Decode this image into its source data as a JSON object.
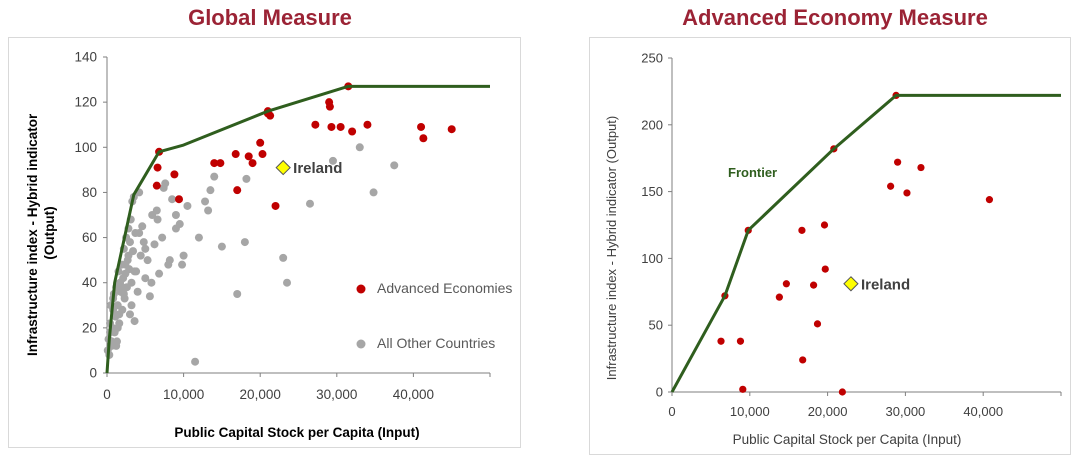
{
  "colors": {
    "title": "#9b2335",
    "frontier": "#2f5e1e",
    "advanced": "#c00000",
    "other": "#a6a6a6",
    "ireland_fill": "#ffff00",
    "axis": "#7f7f7f"
  },
  "chart_data": [
    {
      "type": "scatter",
      "title": "Global Measure",
      "xlabel": "Public Capital Stock per Capita (Input)",
      "ylabel": "Infrastructure index - Hybrid indicator (Output)",
      "xlim": [
        0,
        50000
      ],
      "ylim": [
        0,
        140
      ],
      "xticks": [
        0,
        10000,
        20000,
        30000,
        40000
      ],
      "xtick_labels": [
        "0",
        "10,000",
        "20,000",
        "30,000",
        "40,000"
      ],
      "yticks": [
        0,
        20,
        40,
        60,
        80,
        100,
        120,
        140
      ],
      "ytick_labels": [
        "0",
        "20",
        "40",
        "60",
        "80",
        "100",
        "120",
        "140"
      ],
      "grid": false,
      "legend_position": "bottom-right",
      "frontier": {
        "x": [
          0,
          300,
          1000,
          3500,
          6800,
          10000,
          21000,
          31500,
          50000
        ],
        "y": [
          0,
          15,
          40,
          79,
          98,
          101,
          116,
          127,
          127
        ]
      },
      "series": [
        {
          "name": "Advanced Economies",
          "marker": "circle",
          "x": [
            6800,
            6600,
            6500,
            8800,
            9400,
            14000,
            14800,
            16800,
            17000,
            18500,
            19000,
            20000,
            20300,
            21000,
            21300,
            22000,
            27200,
            29000,
            29100,
            29300,
            30500,
            32000,
            34000,
            41000,
            41300,
            45000,
            31500,
            21000
          ],
          "y": [
            98,
            91,
            83,
            88,
            77,
            93,
            93,
            97,
            81,
            96,
            93,
            102,
            97,
            116,
            114,
            74,
            110,
            120,
            118,
            109,
            109,
            107,
            110,
            109,
            104,
            108,
            127,
            115
          ]
        },
        {
          "name": "All Other Countries",
          "marker": "circle",
          "x": [
            100,
            200,
            300,
            400,
            500,
            600,
            700,
            800,
            900,
            1000,
            1100,
            1200,
            1300,
            1400,
            1500,
            1600,
            1700,
            1800,
            1900,
            2000,
            2100,
            2200,
            2300,
            2400,
            2500,
            2600,
            2700,
            2800,
            2900,
            3000,
            3100,
            3200,
            3300,
            3400,
            3500,
            3600,
            3700,
            3800,
            4000,
            4200,
            4400,
            4600,
            4800,
            5000,
            5300,
            5600,
            5900,
            6200,
            6500,
            6800,
            7200,
            7600,
            8000,
            8500,
            9000,
            9500,
            10000,
            10500,
            11500,
            12000,
            12800,
            13200,
            13500,
            14000,
            15000,
            17000,
            18000,
            18200,
            23000,
            23500,
            26500,
            29500,
            33000,
            34800,
            37500,
            400,
            800,
            1200,
            1600,
            2000,
            2400,
            2800,
            3200,
            3600,
            4200,
            5000,
            5800,
            6600,
            7400,
            8200,
            9000,
            9800,
            600,
            1400,
            2200,
            3000
          ],
          "y": [
            10,
            15,
            8,
            22,
            30,
            12,
            20,
            28,
            35,
            18,
            25,
            38,
            14,
            30,
            45,
            22,
            40,
            36,
            48,
            28,
            42,
            55,
            33,
            44,
            60,
            38,
            50,
            64,
            46,
            58,
            68,
            40,
            76,
            54,
            78,
            23,
            62,
            45,
            36,
            80,
            52,
            65,
            58,
            42,
            50,
            34,
            70,
            57,
            72,
            44,
            60,
            84,
            48,
            77,
            64,
            66,
            52,
            74,
            5,
            60,
            76,
            72,
            81,
            87,
            56,
            35,
            58,
            86,
            51,
            40,
            75,
            94,
            100,
            80,
            92,
            18,
            33,
            12,
            26,
            38,
            48,
            52,
            30,
            45,
            62,
            55,
            40,
            68,
            82,
            50,
            70,
            48,
            14,
            20,
            35,
            26
          ]
        }
      ],
      "annotations": [
        {
          "label": "Ireland",
          "marker": "diamond",
          "x": 23000,
          "y": 91
        }
      ]
    },
    {
      "type": "scatter",
      "title": "Advanced Economy Measure",
      "xlabel": "Public Capital Stock per Capita (Input)",
      "ylabel": "Infrastructure index - Hybrid indicator (Output)",
      "xlim": [
        0,
        50000
      ],
      "ylim": [
        0,
        250
      ],
      "xticks": [
        0,
        10000,
        20000,
        30000,
        40000
      ],
      "xtick_labels": [
        "0",
        "10,000",
        "20,000",
        "30,000",
        "40,000"
      ],
      "yticks": [
        0,
        50,
        100,
        150,
        200,
        250
      ],
      "ytick_labels": [
        "0",
        "50",
        "100",
        "150",
        "200",
        "250"
      ],
      "grid": false,
      "frontier_label": "Frontier",
      "frontier": {
        "x": [
          0,
          6800,
          9800,
          20800,
          28800,
          50000
        ],
        "y": [
          0,
          72,
          121,
          182,
          222,
          222
        ]
      },
      "series": [
        {
          "marker": "circle",
          "x": [
            6800,
            9800,
            20800,
            28800,
            6300,
            8800,
            9100,
            13800,
            14700,
            16700,
            16800,
            18200,
            18700,
            19600,
            19700,
            21900,
            28100,
            29000,
            30200,
            32000,
            40800
          ],
          "y": [
            72,
            121,
            182,
            222,
            38,
            38,
            2,
            71,
            81,
            121,
            24,
            80,
            51,
            125,
            92,
            0,
            154,
            172,
            149,
            168,
            144
          ]
        }
      ],
      "annotations": [
        {
          "label": "Ireland",
          "marker": "diamond",
          "x": 23000,
          "y": 81
        }
      ]
    }
  ]
}
